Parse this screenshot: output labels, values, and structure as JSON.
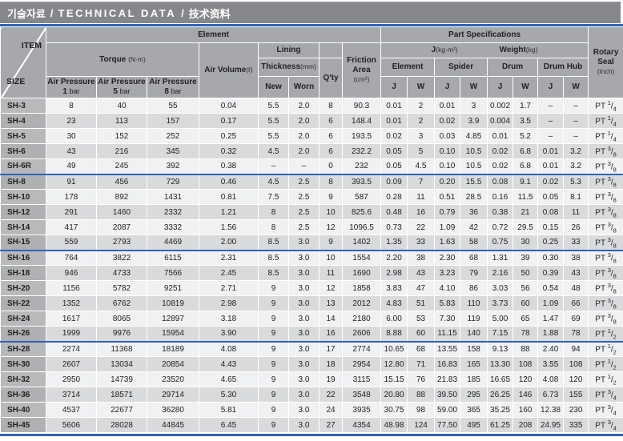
{
  "title": {
    "ko": "기술자료",
    "en": "TECHNICAL DATA",
    "zh": "技术资料",
    "sep": "/"
  },
  "colors": {
    "accent_blue": "#2e63b8",
    "title_bar_gray": "#85878a",
    "header_gray": "#a6a8ab",
    "row_light": "#f0f1f2",
    "row_dark": "#d9dadc"
  },
  "header": {
    "item": "ITEM",
    "size": "SIZE",
    "element_group": "Element",
    "part_specs_group": "Part Specifications",
    "torque": "Torque",
    "torque_unit": "(N·m)",
    "air_pressure": "Air Pressure",
    "bars": [
      "1",
      "5",
      "8"
    ],
    "bar_word": "bar",
    "air_volume": "Air Volume",
    "air_volume_unit": "(ℓ)",
    "lining": "Lining",
    "thickness": "Thickness",
    "thickness_unit": "(mm)",
    "new": "New",
    "worn": "Worn",
    "qty": "Q'ty",
    "friction_line1": "Friction",
    "friction_line2": "Area",
    "friction_unit": "(cm²)",
    "j_label": "J",
    "j_unit": "(kg·m²)",
    "weight_label": "Weight",
    "weight_unit": "(kg)",
    "parts": [
      "Element",
      "Spider",
      "Drum",
      "Drum Hub"
    ],
    "j": "J",
    "w": "W",
    "rotary_line1": "Rotary",
    "rotary_line2": "Seal",
    "rotary_unit": "(inch)"
  },
  "table": {
    "seal_prefix": "PT",
    "columns_order": [
      "air_pressure_1bar",
      "air_pressure_5bar",
      "air_pressure_8bar",
      "air_volume",
      "lining_new",
      "lining_worn",
      "qty",
      "friction_area",
      "element_j",
      "element_w",
      "spider_j",
      "spider_w",
      "drum_j",
      "drum_w",
      "drum_hub_j",
      "drum_hub_w"
    ],
    "rows": [
      {
        "size": "SH-3",
        "values": [
          "8",
          "40",
          "55",
          "0.04",
          "5.5",
          "2.0",
          "8",
          "90.3",
          "0.01",
          "2",
          "0.01",
          "3",
          "0.002",
          "1.7",
          "–",
          "–"
        ],
        "seal_num": "1",
        "seal_den": "4",
        "group_end": false
      },
      {
        "size": "SH-4",
        "values": [
          "23",
          "113",
          "157",
          "0.17",
          "5.5",
          "2.0",
          "6",
          "148.4",
          "0.01",
          "2",
          "0.02",
          "3.9",
          "0.004",
          "3.5",
          "–",
          "–"
        ],
        "seal_num": "1",
        "seal_den": "4",
        "group_end": false
      },
      {
        "size": "SH-5",
        "values": [
          "30",
          "152",
          "252",
          "0.25",
          "5.5",
          "2.0",
          "6",
          "193.5",
          "0.02",
          "3",
          "0.03",
          "4.85",
          "0.01",
          "5.2",
          "–",
          "–"
        ],
        "seal_num": "1",
        "seal_den": "4",
        "group_end": false
      },
      {
        "size": "SH-6",
        "values": [
          "43",
          "216",
          "345",
          "0.32",
          "4.5",
          "2.0",
          "6",
          "232.2",
          "0.05",
          "5",
          "0.10",
          "10.5",
          "0.02",
          "6.8",
          "0.01",
          "3.2"
        ],
        "seal_num": "3",
        "seal_den": "8",
        "group_end": false
      },
      {
        "size": "SH-6R",
        "values": [
          "49",
          "245",
          "392",
          "0.38",
          "–",
          "–",
          "0",
          "232",
          "0.05",
          "4.5",
          "0.10",
          "10.5",
          "0.02",
          "6.8",
          "0.01",
          "3.2"
        ],
        "seal_num": "3",
        "seal_den": "8",
        "group_end": true
      },
      {
        "size": "SH-8",
        "values": [
          "91",
          "456",
          "729",
          "0.46",
          "4.5",
          "2.5",
          "8",
          "393.5",
          "0.09",
          "7",
          "0.20",
          "15.5",
          "0.08",
          "9.1",
          "0.02",
          "5.3"
        ],
        "seal_num": "3",
        "seal_den": "8",
        "group_end": false
      },
      {
        "size": "SH-10",
        "values": [
          "178",
          "892",
          "1431",
          "0.81",
          "7.5",
          "2.5",
          "9",
          "587",
          "0.28",
          "11",
          "0.51",
          "28.5",
          "0.16",
          "11.5",
          "0.05",
          "8.1"
        ],
        "seal_num": "3",
        "seal_den": "8",
        "group_end": false
      },
      {
        "size": "SH-12",
        "values": [
          "291",
          "1460",
          "2332",
          "1.21",
          "8",
          "2.5",
          "10",
          "825.6",
          "0.48",
          "16",
          "0.79",
          "36",
          "0.38",
          "21",
          "0.08",
          "11"
        ],
        "seal_num": "3",
        "seal_den": "8",
        "group_end": false
      },
      {
        "size": "SH-14",
        "values": [
          "417",
          "2087",
          "3332",
          "1.56",
          "8",
          "2.5",
          "12",
          "1096.5",
          "0.73",
          "22",
          "1.09",
          "42",
          "0.72",
          "29.5",
          "0.15",
          "26"
        ],
        "seal_num": "3",
        "seal_den": "8",
        "group_end": false
      },
      {
        "size": "SH-15",
        "values": [
          "559",
          "2793",
          "4469",
          "2.00",
          "8.5",
          "3.0",
          "9",
          "1402",
          "1.35",
          "33",
          "1.63",
          "58",
          "0.75",
          "30",
          "0.25",
          "33"
        ],
        "seal_num": "3",
        "seal_den": "8",
        "group_end": true
      },
      {
        "size": "SH-16",
        "values": [
          "764",
          "3822",
          "6115",
          "2.31",
          "8.5",
          "3.0",
          "10",
          "1554",
          "2.20",
          "38",
          "2.30",
          "68",
          "1.31",
          "39",
          "0.30",
          "38"
        ],
        "seal_num": "3",
        "seal_den": "8",
        "group_end": false
      },
      {
        "size": "SH-18",
        "values": [
          "946",
          "4733",
          "7566",
          "2.45",
          "8.5",
          "3.0",
          "11",
          "1690",
          "2.98",
          "43",
          "3.23",
          "79",
          "2.16",
          "50",
          "0.39",
          "43"
        ],
        "seal_num": "3",
        "seal_den": "8",
        "group_end": false
      },
      {
        "size": "SH-20",
        "values": [
          "1156",
          "5782",
          "9251",
          "2.71",
          "9",
          "3.0",
          "12",
          "1858",
          "3.83",
          "47",
          "4.10",
          "86",
          "3.03",
          "56",
          "0.54",
          "48"
        ],
        "seal_num": "3",
        "seal_den": "8",
        "group_end": false
      },
      {
        "size": "SH-22",
        "values": [
          "1352",
          "6762",
          "10819",
          "2.98",
          "9",
          "3.0",
          "13",
          "2012",
          "4.83",
          "51",
          "5.83",
          "110",
          "3.73",
          "60",
          "1.09",
          "66"
        ],
        "seal_num": "3",
        "seal_den": "8",
        "group_end": false
      },
      {
        "size": "SH-24",
        "values": [
          "1617",
          "8065",
          "12897",
          "3.18",
          "9",
          "3.0",
          "14",
          "2180",
          "6.00",
          "53",
          "7.30",
          "119",
          "5.00",
          "65",
          "1.47",
          "69"
        ],
        "seal_num": "3",
        "seal_den": "8",
        "group_end": false
      },
      {
        "size": "SH-26",
        "values": [
          "1999",
          "9976",
          "15954",
          "3.90",
          "9",
          "3.0",
          "16",
          "2606",
          "8.88",
          "60",
          "11.15",
          "140",
          "7.15",
          "78",
          "1.88",
          "78"
        ],
        "seal_num": "1",
        "seal_den": "2",
        "group_end": true
      },
      {
        "size": "SH-28",
        "values": [
          "2274",
          "11368",
          "18189",
          "4.08",
          "9",
          "3.0",
          "17",
          "2774",
          "10.65",
          "68",
          "13.55",
          "158",
          "9.13",
          "88",
          "2.40",
          "94"
        ],
        "seal_num": "1",
        "seal_den": "2",
        "group_end": false
      },
      {
        "size": "SH-30",
        "values": [
          "2607",
          "13034",
          "20854",
          "4.43",
          "9",
          "3.0",
          "18",
          "2954",
          "12.80",
          "71",
          "16.83",
          "165",
          "13.30",
          "108",
          "3.55",
          "108"
        ],
        "seal_num": "1",
        "seal_den": "2",
        "group_end": false
      },
      {
        "size": "SH-32",
        "values": [
          "2950",
          "14739",
          "23520",
          "4.65",
          "9",
          "3.0",
          "19",
          "3115",
          "15.15",
          "76",
          "21.83",
          "185",
          "16.65",
          "120",
          "4.08",
          "120"
        ],
        "seal_num": "1",
        "seal_den": "2",
        "group_end": false
      },
      {
        "size": "SH-36",
        "values": [
          "3714",
          "18571",
          "29714",
          "5.30",
          "9",
          "3.0",
          "22",
          "3548",
          "20.80",
          "88",
          "39.50",
          "295",
          "26.25",
          "146",
          "6.73",
          "155"
        ],
        "seal_num": "3",
        "seal_den": "4",
        "group_end": false
      },
      {
        "size": "SH-40",
        "values": [
          "4537",
          "22677",
          "36280",
          "5.81",
          "9",
          "3.0",
          "24",
          "3935",
          "30.75",
          "98",
          "59.00",
          "365",
          "35.25",
          "160",
          "12.38",
          "230"
        ],
        "seal_num": "3",
        "seal_den": "4",
        "group_end": false
      },
      {
        "size": "SH-45",
        "values": [
          "5606",
          "28028",
          "44845",
          "6.45",
          "9",
          "3.0",
          "27",
          "4354",
          "48.98",
          "124",
          "77.50",
          "495",
          "61.25",
          "208",
          "24.95",
          "335"
        ],
        "seal_num": "3",
        "seal_den": "4",
        "group_end": false
      }
    ]
  }
}
